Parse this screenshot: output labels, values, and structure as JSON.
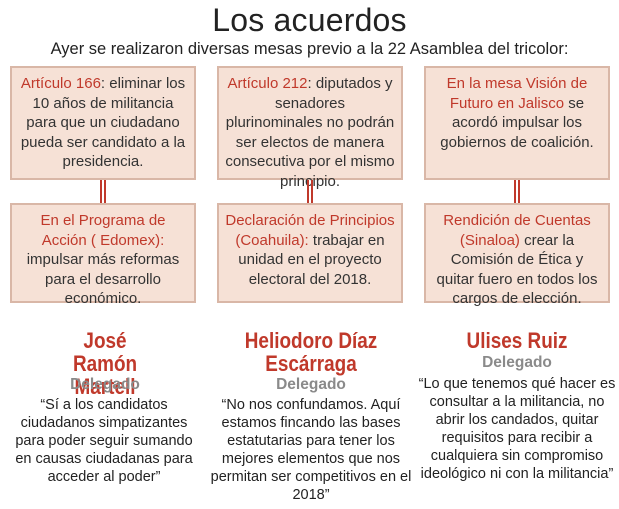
{
  "header": {
    "title": "Los acuerdos",
    "subtitle": "Ayer se realizaron diversas mesas previo a la 22 Asamblea del tricolor:"
  },
  "top_row": [
    {
      "highlight": "Artículo 166",
      "text": ": eliminar los 10 años de militancia para que un ciudadano pueda ser candidato a la presidencia."
    },
    {
      "highlight": "Artículo 212",
      "text": ": diputados y senadores plurinominales no podrán ser electos de manera consecutiva por el mismo principio."
    },
    {
      "highlight": "En la mesa Visión de Futuro en Jalisco",
      "text": " se acordó impulsar los gobiernos de coalición."
    }
  ],
  "bottom_row": [
    {
      "highlight": "En el Programa de Acción ( Edomex):",
      "text": " impulsar más reformas para el desarrollo económico."
    },
    {
      "highlight": "Declaración de Principios (Coahuila):",
      "text": " trabajar en unidad en el proyecto electoral del 2018."
    },
    {
      "highlight": "Rendición de Cuentas (Sinaloa)",
      "text": " crear la Comisión de Ética y quitar fuero en todos los cargos de elección."
    }
  ],
  "delegates": [
    {
      "name": "José Ramón Martell",
      "role": "Delegado",
      "quote": "“Sí a los candidatos ciudadanos simpatizantes para poder seguir sumando en causas ciudadanas para acceder al poder”"
    },
    {
      "name": "Heliodoro Díaz Escárraga",
      "role": "Delegado",
      "quote": "“No nos confundamos. Aquí estamos fincando las bases estatutarias para tener los mejores elementos que nos permitan ser competitivos en el 2018”"
    },
    {
      "name": "Ulises Ruiz",
      "role": "Delegado",
      "quote": "“Lo que tenemos qué hacer es consultar a la militancia, no abrir los candados, quitar requisitos para recibir a cualquiera sin compromiso ideológico ni con la militancia”"
    }
  ]
}
